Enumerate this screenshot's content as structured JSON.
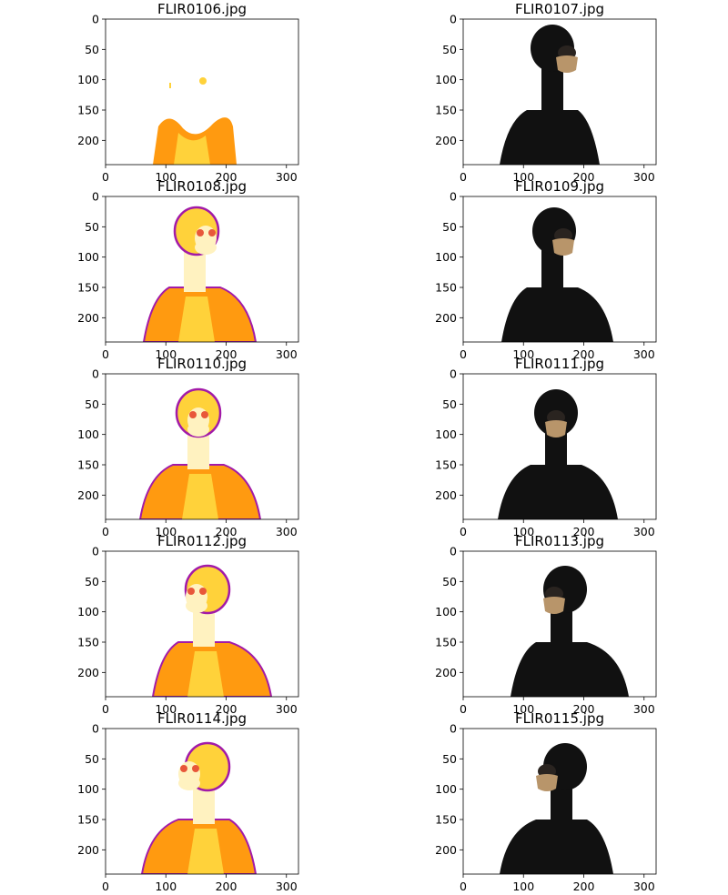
{
  "chart_data": [
    {
      "type": "image",
      "title": "FLIR0106.jpg",
      "palette": "thermal",
      "subject": "torso-only",
      "xticks": [
        0,
        100,
        200,
        300
      ],
      "yticks": [
        0,
        50,
        100,
        150,
        200
      ],
      "xlim": [
        0,
        320
      ],
      "ylim": [
        240,
        0
      ]
    },
    {
      "type": "image",
      "title": "FLIR0107.jpg",
      "palette": "visible",
      "subject": "profile-right",
      "xticks": [
        0,
        100,
        200,
        300
      ],
      "yticks": [
        0,
        50,
        100,
        150,
        200
      ],
      "xlim": [
        0,
        320
      ],
      "ylim": [
        240,
        0
      ]
    },
    {
      "type": "image",
      "title": "FLIR0108.jpg",
      "palette": "thermal",
      "subject": "three-quarter",
      "xticks": [
        0,
        100,
        200,
        300
      ],
      "yticks": [
        0,
        50,
        100,
        150,
        200
      ],
      "xlim": [
        0,
        320
      ],
      "ylim": [
        240,
        0
      ]
    },
    {
      "type": "image",
      "title": "FLIR0109.jpg",
      "palette": "visible",
      "subject": "three-quarter",
      "xticks": [
        0,
        100,
        200,
        300
      ],
      "yticks": [
        0,
        50,
        100,
        150,
        200
      ],
      "xlim": [
        0,
        320
      ],
      "ylim": [
        240,
        0
      ]
    },
    {
      "type": "image",
      "title": "FLIR0110.jpg",
      "palette": "thermal",
      "subject": "frontal",
      "xticks": [
        0,
        100,
        200,
        300
      ],
      "yticks": [
        0,
        50,
        100,
        150,
        200
      ],
      "xlim": [
        0,
        320
      ],
      "ylim": [
        240,
        0
      ]
    },
    {
      "type": "image",
      "title": "FLIR0111.jpg",
      "palette": "visible",
      "subject": "frontal",
      "xticks": [
        0,
        100,
        200,
        300
      ],
      "yticks": [
        0,
        50,
        100,
        150,
        200
      ],
      "xlim": [
        0,
        320
      ],
      "ylim": [
        240,
        0
      ]
    },
    {
      "type": "image",
      "title": "FLIR0112.jpg",
      "palette": "thermal",
      "subject": "three-quarter-left",
      "xticks": [
        0,
        100,
        200,
        300
      ],
      "yticks": [
        0,
        50,
        100,
        150,
        200
      ],
      "xlim": [
        0,
        320
      ],
      "ylim": [
        240,
        0
      ]
    },
    {
      "type": "image",
      "title": "FLIR0113.jpg",
      "palette": "visible",
      "subject": "three-quarter-left",
      "xticks": [
        0,
        100,
        200,
        300
      ],
      "yticks": [
        0,
        50,
        100,
        150,
        200
      ],
      "xlim": [
        0,
        320
      ],
      "ylim": [
        240,
        0
      ]
    },
    {
      "type": "image",
      "title": "FLIR0114.jpg",
      "palette": "thermal",
      "subject": "profile-left",
      "xticks": [
        0,
        100,
        200,
        300
      ],
      "yticks": [
        0,
        50,
        100,
        150,
        200
      ],
      "xlim": [
        0,
        320
      ],
      "ylim": [
        240,
        0
      ]
    },
    {
      "type": "image",
      "title": "FLIR0115.jpg",
      "palette": "visible",
      "subject": "profile-left",
      "xticks": [
        0,
        100,
        200,
        300
      ],
      "yticks": [
        0,
        50,
        100,
        150,
        200
      ],
      "xlim": [
        0,
        320
      ],
      "ylim": [
        240,
        0
      ]
    }
  ],
  "colors": {
    "thermal_hot": "#fff2c0",
    "thermal_warm": "#ffd23a",
    "thermal_mid": "#ff9a10",
    "thermal_cool": "#e8573a",
    "thermal_edge": "#a21aa8",
    "skin_dark": "#111111",
    "mask": "#b8956a",
    "axis": "#000000"
  }
}
